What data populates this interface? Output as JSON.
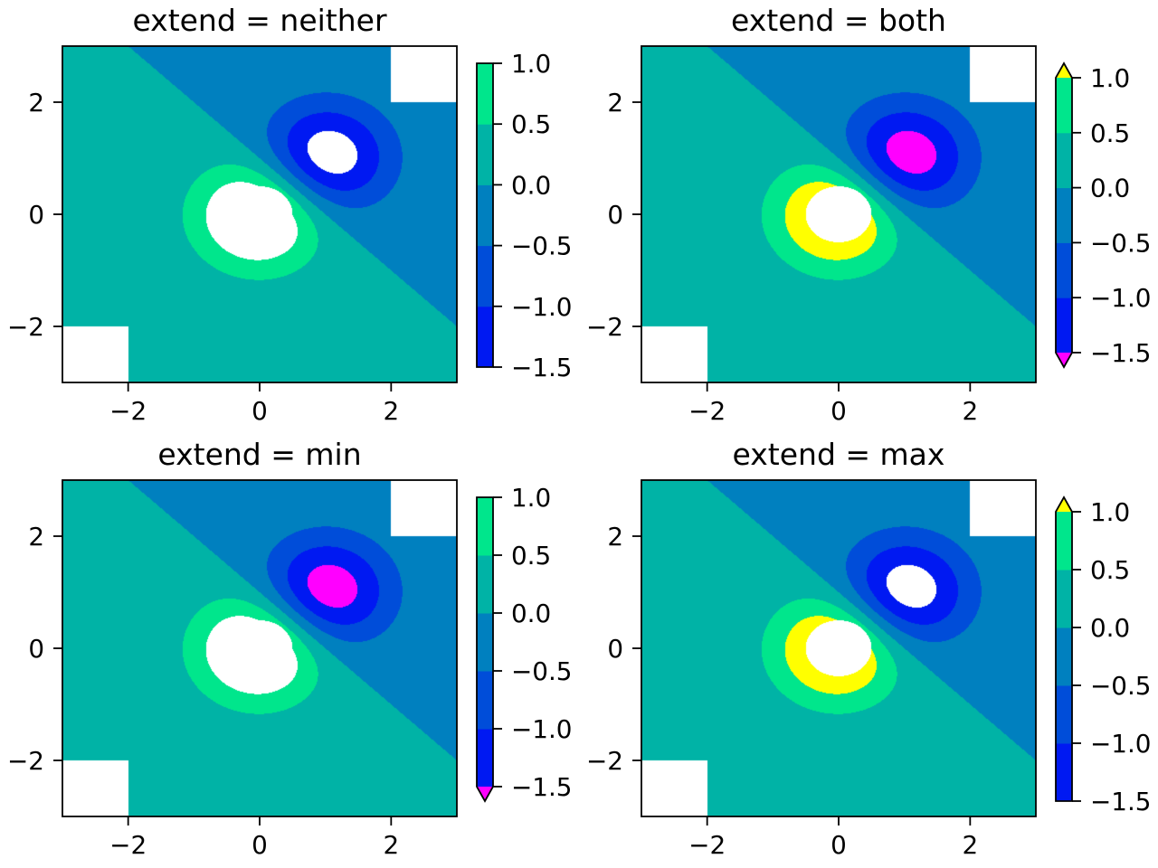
{
  "chart_data": [
    {
      "type": "contourf",
      "title": "extend = neither",
      "extend": "neither"
    },
    {
      "type": "contourf",
      "title": "extend = both",
      "extend": "both"
    },
    {
      "type": "contourf",
      "title": "extend = min",
      "extend": "min"
    },
    {
      "type": "contourf",
      "title": "extend = max",
      "extend": "max"
    }
  ],
  "shared": {
    "xlim": [
      -3,
      3
    ],
    "ylim": [
      -3,
      3
    ],
    "x_ticks": [
      "−2",
      "0",
      "2"
    ],
    "x_tick_values": [
      -2,
      0,
      2
    ],
    "y_ticks": [
      "−2",
      "0",
      "2"
    ],
    "y_tick_values": [
      -2,
      0,
      2
    ],
    "levels": [
      -1.5,
      -1.0,
      -0.5,
      0.0,
      0.5,
      1.0
    ],
    "colorbar_ticks": [
      "−1.5",
      "−1.0",
      "−0.5",
      "0.0",
      "0.5",
      "1.0"
    ],
    "level_colors": [
      "#0019F2",
      "#004DD9",
      "#0080BF",
      "#00B3A6",
      "#00E68C"
    ],
    "over_color": "#FFFF00",
    "under_color": "#FF00FF",
    "field_gaussians": [
      {
        "x": 0,
        "y": 0,
        "amplitude": 2
      },
      {
        "x": 1,
        "y": 1,
        "amplitude": -2
      }
    ],
    "masked_regions": [
      {
        "shape": "rect",
        "x": [
          -3,
          -2
        ],
        "y": [
          -3,
          -2
        ]
      },
      {
        "shape": "rect",
        "x": [
          2,
          3
        ],
        "y": [
          2,
          3
        ]
      },
      {
        "shape": "circle",
        "x": 0,
        "y": 0,
        "r": 0.5
      }
    ],
    "grid": false
  }
}
